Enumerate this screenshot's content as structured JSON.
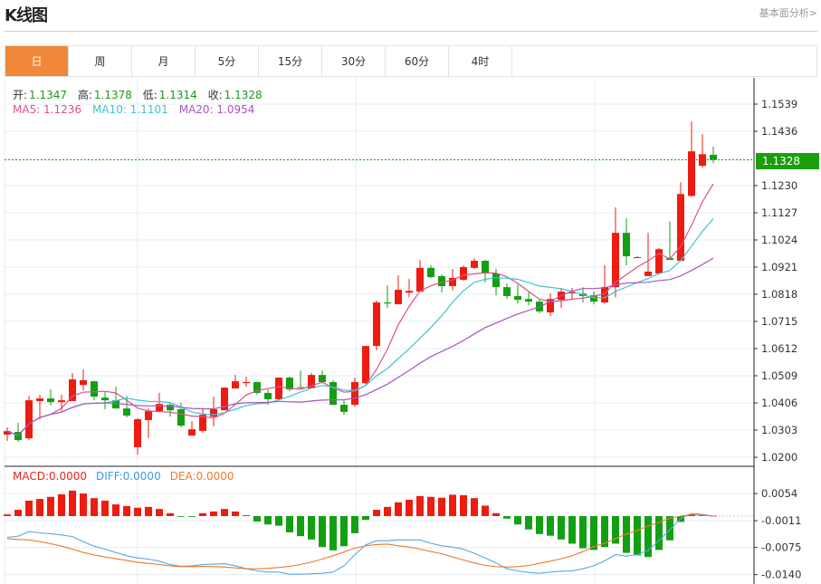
{
  "header": {
    "title": "K线图",
    "link_label": "基本面分析>"
  },
  "tabs": [
    {
      "label": "日",
      "active": true
    },
    {
      "label": "周"
    },
    {
      "label": "月"
    },
    {
      "label": "5分"
    },
    {
      "label": "15分"
    },
    {
      "label": "30分"
    },
    {
      "label": "60分"
    },
    {
      "label": "4时"
    }
  ],
  "ohlc_legend": {
    "open_label": "开:",
    "open": "1.1347",
    "high_label": "高:",
    "high": "1.1378",
    "low_label": "低:",
    "low": "1.1314",
    "close_label": "收:",
    "close": "1.1328"
  },
  "ma_legend": {
    "ma5": "MA5: 1.1236",
    "ma10": "MA10: 1.1101",
    "ma20": "MA20: 1.0954"
  },
  "macd_legend": {
    "macd": "MACD:0.0000",
    "diff": "DIFF:0.0000",
    "dea": "DEA:0.0000"
  },
  "current_price": "1.1328",
  "colors": {
    "up": "#ee1c10",
    "down": "#12a012",
    "ma5": "#e0508a",
    "ma10": "#3ec4d4",
    "ma20": "#a855c0",
    "diff": "#5aa6e6",
    "dea": "#ee7a2a",
    "active_tab": "#f0883a",
    "price_tag": "#1a9e0a"
  },
  "chart_data": [
    {
      "type": "candlestick",
      "up_color_meaning": "red = rise, green = fall",
      "ylim": [
        1.02,
        1.1539
      ],
      "yticks": [
        "1.1539",
        "1.1436",
        "1.1230",
        "1.1127",
        "1.1024",
        "1.0921",
        "1.0818",
        "1.0715",
        "1.0612",
        "1.0509",
        "1.0406",
        "1.0303",
        "1.0200"
      ],
      "grid": true,
      "ma_periods": [
        5,
        10,
        20
      ],
      "candles_ohlc": [
        [
          1.0286,
          1.0313,
          1.0262,
          1.0299
        ],
        [
          1.0296,
          1.033,
          1.0258,
          1.0265
        ],
        [
          1.0272,
          1.0433,
          1.0265,
          1.0416
        ],
        [
          1.0413,
          1.0437,
          1.0344,
          1.0423
        ],
        [
          1.0423,
          1.0457,
          1.0396,
          1.0409
        ],
        [
          1.0409,
          1.0437,
          1.0375,
          1.0416
        ],
        [
          1.0413,
          1.0519,
          1.0413,
          1.0495
        ],
        [
          1.0474,
          1.0533,
          1.0454,
          1.0492
        ],
        [
          1.0488,
          1.049,
          1.0416,
          1.043
        ],
        [
          1.0426,
          1.0447,
          1.0382,
          1.0416
        ],
        [
          1.0416,
          1.0468,
          1.0385,
          1.0385
        ],
        [
          1.0385,
          1.0433,
          1.0351,
          1.0358
        ],
        [
          1.0238,
          1.0348,
          1.021,
          1.0344
        ],
        [
          1.0341,
          1.0385,
          1.0272,
          1.0375
        ],
        [
          1.0375,
          1.0444,
          1.0372,
          1.0402
        ],
        [
          1.0399,
          1.0406,
          1.0354,
          1.0378
        ],
        [
          1.0382,
          1.0406,
          1.0313,
          1.032
        ],
        [
          1.0282,
          1.0337,
          1.0282,
          1.0306
        ],
        [
          1.03,
          1.0382,
          1.0293,
          1.0361
        ],
        [
          1.0354,
          1.043,
          1.0317,
          1.0382
        ],
        [
          1.0378,
          1.0466,
          1.0378,
          1.0464
        ],
        [
          1.0461,
          1.0512,
          1.0461,
          1.0488
        ],
        [
          1.0481,
          1.0505,
          1.0468,
          1.0485
        ],
        [
          1.0485,
          1.0487,
          1.0437,
          1.0444
        ],
        [
          1.0444,
          1.0457,
          1.0399,
          1.042
        ],
        [
          1.042,
          1.0503,
          1.0419,
          1.0502
        ],
        [
          1.0502,
          1.0505,
          1.045,
          1.0457
        ],
        [
          1.0466,
          1.0529,
          1.0461,
          1.0464
        ],
        [
          1.0461,
          1.0519,
          1.0461,
          1.0512
        ],
        [
          1.0512,
          1.0529,
          1.0481,
          1.0485
        ],
        [
          1.0485,
          1.0492,
          1.0399,
          1.0399
        ],
        [
          1.0399,
          1.0416,
          1.0361,
          1.0372
        ],
        [
          1.0399,
          1.0502,
          1.0392,
          1.0485
        ],
        [
          1.0481,
          1.0622,
          1.0478,
          1.0622
        ],
        [
          1.0622,
          1.0794,
          1.0605,
          1.0787
        ],
        [
          1.0787,
          1.0852,
          1.0766,
          1.0783
        ],
        [
          1.078,
          1.089,
          1.078,
          1.0835
        ],
        [
          1.0824,
          1.0876,
          1.0807,
          1.0831
        ],
        [
          1.0828,
          1.0948,
          1.0828,
          1.0918
        ],
        [
          1.0918,
          1.0928,
          1.088,
          1.0883
        ],
        [
          1.0887,
          1.0893,
          1.0825,
          1.0849
        ],
        [
          1.0849,
          1.0914,
          1.0832,
          1.088
        ],
        [
          1.0873,
          1.0928,
          1.0869,
          1.0921
        ],
        [
          1.0918,
          1.0955,
          1.0914,
          1.0945
        ],
        [
          1.0945,
          1.0948,
          1.0862,
          1.09
        ],
        [
          1.0897,
          1.0914,
          1.0814,
          1.0845
        ],
        [
          1.0845,
          1.0859,
          1.08,
          1.0811
        ],
        [
          1.0811,
          1.0855,
          1.0783,
          1.0797
        ],
        [
          1.08,
          1.0825,
          1.0776,
          1.079
        ],
        [
          1.079,
          1.08,
          1.0746,
          1.0753
        ],
        [
          1.0749,
          1.0821,
          1.0736,
          1.08
        ],
        [
          1.0797,
          1.0842,
          1.0766,
          1.0828
        ],
        [
          1.0824,
          1.0842,
          1.08,
          1.0825
        ],
        [
          1.0821,
          1.0845,
          1.0787,
          1.0811
        ],
        [
          1.0814,
          1.0828,
          1.078,
          1.079
        ],
        [
          1.0787,
          1.0928,
          1.0783,
          1.0845
        ],
        [
          1.0845,
          1.1147,
          1.0807,
          1.1051
        ],
        [
          1.1051,
          1.1106,
          1.0928,
          1.0962
        ],
        [
          1.0959,
          1.0962,
          1.0955,
          1.0959
        ],
        [
          1.0887,
          1.1051,
          1.0887,
          1.0904
        ],
        [
          1.0897,
          1.0993,
          1.0893,
          1.0989
        ],
        [
          1.0955,
          1.1095,
          1.0948,
          1.0948
        ],
        [
          1.0945,
          1.1243,
          1.0945,
          1.1198
        ],
        [
          1.1191,
          1.1473,
          1.1188,
          1.136
        ],
        [
          1.1305,
          1.1425,
          1.1298,
          1.1349
        ],
        [
          1.1347,
          1.1378,
          1.1314,
          1.1328
        ]
      ]
    },
    {
      "type": "bar+line",
      "ylim": [
        -0.014,
        0.0054
      ],
      "yticks": [
        "0.0054",
        "-0.0011",
        "-0.0075",
        "-0.0140"
      ],
      "grid": true,
      "macd_hist": [
        0.0004,
        0.0015,
        0.0037,
        0.0041,
        0.0046,
        0.0052,
        0.0061,
        0.0054,
        0.0043,
        0.0037,
        0.0028,
        0.0024,
        0.002,
        0.0022,
        0.0017,
        0.0007,
        -0.0001,
        -0.0001,
        0.0007,
        0.0011,
        0.0017,
        0.0011,
        0.0002,
        -0.0013,
        -0.002,
        -0.0023,
        -0.0039,
        -0.0048,
        -0.0056,
        -0.0074,
        -0.0082,
        -0.0072,
        -0.0041,
        -0.0009,
        0.0015,
        0.0022,
        0.0033,
        0.0039,
        0.0048,
        0.0046,
        0.0044,
        0.0051,
        0.005,
        0.0043,
        0.0025,
        0.0007,
        -0.0006,
        -0.002,
        -0.0032,
        -0.0043,
        -0.0047,
        -0.0056,
        -0.0066,
        -0.0077,
        -0.0081,
        -0.0074,
        -0.0066,
        -0.0088,
        -0.0094,
        -0.0098,
        -0.0081,
        -0.0058,
        -0.0014,
        0.0004,
        0.0002,
        0.0001
      ],
      "diff": [
        -0.0051,
        -0.0048,
        -0.0037,
        -0.004,
        -0.0042,
        -0.0045,
        -0.0049,
        -0.0061,
        -0.0072,
        -0.0079,
        -0.0087,
        -0.0095,
        -0.01,
        -0.0103,
        -0.0108,
        -0.0116,
        -0.012,
        -0.0119,
        -0.0116,
        -0.0115,
        -0.0114,
        -0.0119,
        -0.0126,
        -0.0131,
        -0.0134,
        -0.0134,
        -0.0139,
        -0.0139,
        -0.0138,
        -0.0137,
        -0.0134,
        -0.0119,
        -0.0092,
        -0.0069,
        -0.0059,
        -0.0059,
        -0.0057,
        -0.0057,
        -0.0057,
        -0.0065,
        -0.0071,
        -0.0074,
        -0.0079,
        -0.0089,
        -0.01,
        -0.0112,
        -0.0126,
        -0.0131,
        -0.0135,
        -0.0137,
        -0.0134,
        -0.0132,
        -0.0131,
        -0.0126,
        -0.0119,
        -0.0107,
        -0.0092,
        -0.0096,
        -0.0092,
        -0.0082,
        -0.0058,
        -0.0033,
        -0.0006,
        0.0006,
        0.0004,
        0.0
      ],
      "dea": [
        -0.0054,
        -0.0056,
        -0.0057,
        -0.0061,
        -0.0066,
        -0.0072,
        -0.0079,
        -0.0087,
        -0.0093,
        -0.0098,
        -0.0102,
        -0.0106,
        -0.0111,
        -0.0113,
        -0.0116,
        -0.0119,
        -0.0121,
        -0.0121,
        -0.012,
        -0.0121,
        -0.0122,
        -0.0124,
        -0.0126,
        -0.0126,
        -0.0125,
        -0.0123,
        -0.012,
        -0.0116,
        -0.011,
        -0.0103,
        -0.0095,
        -0.0086,
        -0.0077,
        -0.0071,
        -0.0068,
        -0.0067,
        -0.0071,
        -0.0074,
        -0.0079,
        -0.0085,
        -0.009,
        -0.0098,
        -0.0105,
        -0.0112,
        -0.0118,
        -0.0121,
        -0.0122,
        -0.0121,
        -0.0118,
        -0.0113,
        -0.0108,
        -0.0102,
        -0.0095,
        -0.0085,
        -0.0073,
        -0.0065,
        -0.0054,
        -0.0043,
        -0.0034,
        -0.0024,
        -0.0015,
        -0.0005,
        0.0,
        0.0004,
        0.0002,
        0.0
      ]
    }
  ]
}
